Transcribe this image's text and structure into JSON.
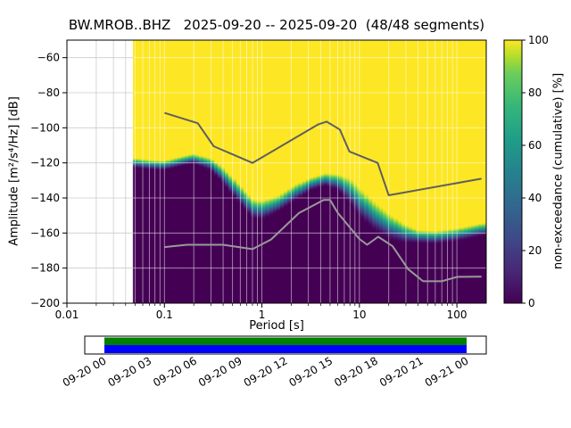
{
  "title": "BW.MROB..BHZ   2025-09-20 -- 2025-09-20  (48/48 segments)",
  "axes": {
    "xlabel": "Period [s]",
    "ylabel": "Amplitude [m²/s⁴/Hz] [dB]",
    "x_scale": "log",
    "xlim": [
      0.01,
      200
    ],
    "ylim": [
      -200,
      -50
    ],
    "x_ticks": [
      {
        "value": 0.01,
        "label": "0.01"
      },
      {
        "value": 0.1,
        "label": "0.1"
      },
      {
        "value": 1,
        "label": "1"
      },
      {
        "value": 10,
        "label": "10"
      },
      {
        "value": 100,
        "label": "100"
      }
    ],
    "y_ticks": [
      {
        "value": -60,
        "label": "−60"
      },
      {
        "value": -80,
        "label": "−80"
      },
      {
        "value": -100,
        "label": "−100"
      },
      {
        "value": -120,
        "label": "−120"
      },
      {
        "value": -140,
        "label": "−140"
      },
      {
        "value": -160,
        "label": "−160"
      },
      {
        "value": -180,
        "label": "−180"
      },
      {
        "value": -200,
        "label": "−200"
      }
    ]
  },
  "colorbar": {
    "label": "non-exceedance (cumulative) [%]",
    "lim": [
      0,
      100
    ],
    "colormap": "viridis",
    "ticks": [
      {
        "value": 0,
        "label": "0"
      },
      {
        "value": 20,
        "label": "20"
      },
      {
        "value": 40,
        "label": "40"
      },
      {
        "value": 60,
        "label": "60"
      },
      {
        "value": 80,
        "label": "80"
      },
      {
        "value": 100,
        "label": "100"
      }
    ]
  },
  "chart_data": {
    "type": "heatmap",
    "title": "BW.MROB..BHZ   2025-09-20 -- 2025-09-20  (48/48 segments)",
    "xlabel": "Period [s]",
    "ylabel": "Amplitude [m²/s⁴/Hz] [dB]",
    "x_scale": "log",
    "xlim": [
      0.01,
      200
    ],
    "ylim": [
      -200,
      -50
    ],
    "value_label": "non-exceedance (cumulative) [%]",
    "value_lim": [
      0,
      100
    ],
    "segments": {
      "used": 48,
      "total": 48
    },
    "data_period_range_s": [
      0.048,
      200
    ],
    "cumulative_transition": {
      "periods_s": [
        0.048,
        0.07,
        0.1,
        0.15,
        0.2,
        0.3,
        0.4,
        0.55,
        0.8,
        1.0,
        1.5,
        2.2,
        3.2,
        4.5,
        6.0,
        8.0,
        10,
        14,
        20,
        28,
        40,
        60,
        100,
        180
      ],
      "db_mid": [
        -120,
        -121,
        -121.5,
        -119,
        -117.5,
        -121,
        -127,
        -136,
        -146,
        -147,
        -143,
        -137,
        -132,
        -129.5,
        -131,
        -136,
        -142,
        -150,
        -156,
        -160,
        -162,
        -162.5,
        -161,
        -158
      ],
      "db_halfwidth": [
        3,
        3,
        3,
        3,
        3,
        4,
        5,
        6,
        6,
        6,
        5,
        5,
        4,
        4,
        5,
        8,
        9,
        9,
        8,
        6,
        4,
        4,
        4,
        4
      ]
    },
    "noise_models": {
      "high": [
        [
          0.1,
          -91.5
        ],
        [
          0.22,
          -97.4
        ],
        [
          0.32,
          -110.5
        ],
        [
          0.8,
          -120
        ],
        [
          3.8,
          -98
        ],
        [
          4.6,
          -96.5
        ],
        [
          6.3,
          -101
        ],
        [
          7.9,
          -113.5
        ],
        [
          15.4,
          -120
        ],
        [
          20,
          -138.5
        ],
        [
          179,
          -129
        ]
      ],
      "low": [
        [
          0.1,
          -168
        ],
        [
          0.17,
          -166.7
        ],
        [
          0.4,
          -166.7
        ],
        [
          0.8,
          -169.2
        ],
        [
          1.24,
          -163.7
        ],
        [
          2.4,
          -148.6
        ],
        [
          4.3,
          -141.1
        ],
        [
          5,
          -141.1
        ],
        [
          6,
          -148.5
        ],
        [
          10,
          -163.4
        ],
        [
          12,
          -166.7
        ],
        [
          15.6,
          -162.1
        ],
        [
          21.9,
          -167.5
        ],
        [
          31.6,
          -180.6
        ],
        [
          45,
          -187.5
        ],
        [
          70,
          -187.5
        ],
        [
          101,
          -185
        ],
        [
          179,
          -184.9
        ]
      ]
    }
  },
  "timeline": {
    "tick_labels": [
      "09-20 00",
      "09-20 03",
      "09-20 06",
      "09-20 09",
      "09-20 12",
      "09-20 15",
      "09-20 18",
      "09-20 21",
      "09-21 00"
    ],
    "coverage_color": "#008000",
    "availability_color": "#0000ff"
  },
  "colors": {
    "background": "#ffffff",
    "frame": "#000000",
    "grid_left": "#cccccc",
    "grid_over_data": "rgba(255,255,255,0.6)",
    "nhnm_line": "#5f5f5f",
    "nlnm_line": "#9a9a9a",
    "viridis_stops": [
      [
        0,
        "#440154"
      ],
      [
        0.125,
        "#482878"
      ],
      [
        0.25,
        "#3e4a89"
      ],
      [
        0.375,
        "#31688e"
      ],
      [
        0.5,
        "#26828e"
      ],
      [
        0.625,
        "#1f9e89"
      ],
      [
        0.75,
        "#35b779"
      ],
      [
        0.875,
        "#6dcd59"
      ],
      [
        0.94,
        "#b5de2b"
      ],
      [
        1,
        "#fde725"
      ]
    ]
  }
}
